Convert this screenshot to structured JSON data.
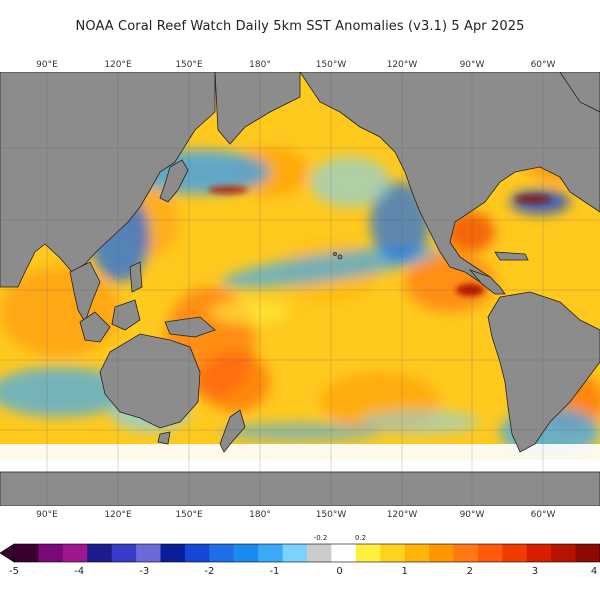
{
  "title": "NOAA Coral Reef Watch Daily 5km SST Anomalies  (v3.1)    5 Apr 2025",
  "lon_ticks": [
    "90°E",
    "120°E",
    "150°E",
    "180°",
    "150°W",
    "120°W",
    "90°W",
    "60°W"
  ],
  "colorbar": {
    "labels": [
      "-5",
      "-4",
      "-3",
      "-2",
      "-1",
      "0",
      "1",
      "2",
      "3",
      "4"
    ],
    "small_labels": [
      "-0.2",
      "0.2"
    ],
    "colors": [
      "#3a0030",
      "#7a0a78",
      "#a0168c",
      "#1c1c8c",
      "#3a3ac8",
      "#6a6ad8",
      "#0a1e9a",
      "#1446d8",
      "#1e6ee8",
      "#1a8cf0",
      "#3aaaf8",
      "#7ad2ff",
      "#cccccc",
      "#ffffff",
      "#fff040",
      "#ffd21e",
      "#ffb40a",
      "#ff9600",
      "#ff7814",
      "#ff5a0a",
      "#f03c00",
      "#d81e00",
      "#b41400",
      "#8c0a00"
    ]
  },
  "colors": {
    "land": "#8c8c8c",
    "ocean_warm": "#ffc91e",
    "ocean_hot": "#ff7a14",
    "ocean_cool": "#3ca0f0",
    "ice": "#ffffff"
  }
}
